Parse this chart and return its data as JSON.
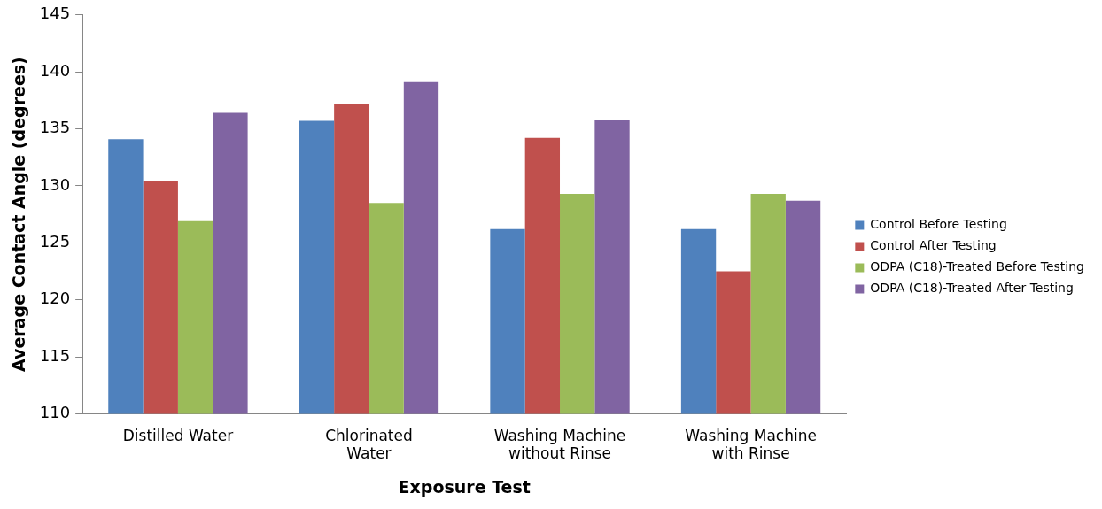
{
  "chart_data": {
    "type": "bar",
    "xlabel": "Exposure Test",
    "ylabel": "Average Contact Angle (degrees)",
    "categories": [
      "Distilled Water",
      "Chlorinated Water",
      "Washing Machine without Rinse",
      "Washing Machine with Rinse"
    ],
    "series": [
      {
        "name": "Control Before Testing",
        "color": "#4f81bd",
        "values": [
          134.1,
          135.7,
          126.2,
          126.2
        ]
      },
      {
        "name": "Control After Testing",
        "color": "#c0504d",
        "values": [
          130.4,
          137.2,
          134.2,
          122.5
        ]
      },
      {
        "name": "ODPA (C18)-Treated Before Testing",
        "color": "#9bbb59",
        "values": [
          126.9,
          128.5,
          129.3,
          129.3
        ]
      },
      {
        "name": "ODPA (C18)-Treated After Testing",
        "color": "#8064a2",
        "values": [
          136.4,
          139.1,
          135.8,
          128.7
        ]
      }
    ],
    "ylim": [
      110,
      145
    ],
    "yticks": [
      110,
      115,
      120,
      125,
      130,
      135,
      140,
      145
    ],
    "grid": false,
    "legend": "right"
  }
}
